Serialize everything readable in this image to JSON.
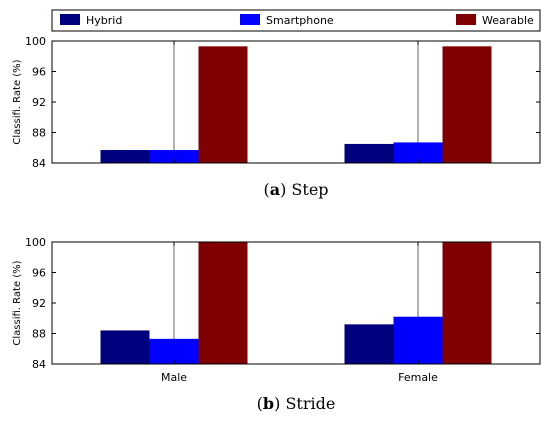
{
  "legend": [
    {
      "name": "Hybrid",
      "color": "#00007f"
    },
    {
      "name": "Smartphone",
      "color": "#0000ff"
    },
    {
      "name": "Wearable",
      "color": "#7f0000"
    }
  ],
  "captions": [
    {
      "letter": "a",
      "text": "Step"
    },
    {
      "letter": "b",
      "text": "Stride"
    }
  ],
  "chart_data": [
    {
      "type": "bar",
      "categories": [
        "Male",
        "Female"
      ],
      "series": [
        {
          "name": "Hybrid",
          "values": [
            85.7,
            86.5
          ]
        },
        {
          "name": "Smartphone",
          "values": [
            85.7,
            86.7
          ]
        },
        {
          "name": "Wearable",
          "values": [
            99.3,
            99.3
          ]
        }
      ],
      "ylabel": "Classifi. Rate (%)",
      "ylim": [
        84,
        100
      ],
      "yticks": [
        84,
        88,
        92,
        96,
        100
      ],
      "show_xticklabels": false,
      "grid": "vertical",
      "legend_position": "top"
    },
    {
      "type": "bar",
      "categories": [
        "Male",
        "Female"
      ],
      "series": [
        {
          "name": "Hybrid",
          "values": [
            88.4,
            89.2
          ]
        },
        {
          "name": "Smartphone",
          "values": [
            87.3,
            90.2
          ]
        },
        {
          "name": "Wearable",
          "values": [
            100,
            100
          ]
        }
      ],
      "ylabel": "Classifi. Rate (%)",
      "ylim": [
        84,
        100
      ],
      "yticks": [
        84,
        88,
        92,
        96,
        100
      ],
      "show_xticklabels": true,
      "grid": "vertical"
    }
  ]
}
